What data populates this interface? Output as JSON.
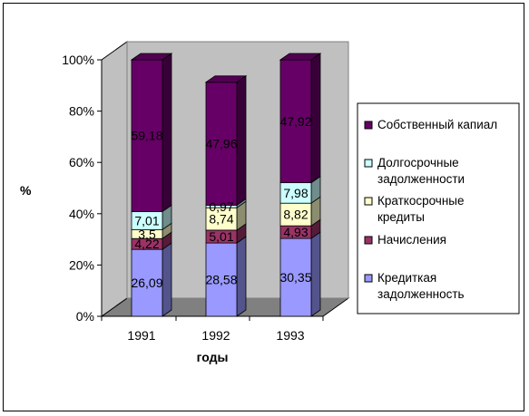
{
  "chart_data": {
    "type": "bar",
    "stacked": "percent",
    "three_d": true,
    "categories": [
      "1991",
      "1992",
      "1993"
    ],
    "xlabel": "годы",
    "ylabel": "%",
    "ylim": [
      0,
      100
    ],
    "y_ticks": [
      "0%",
      "20%",
      "40%",
      "60%",
      "80%",
      "100%"
    ],
    "grid": false,
    "legend_position": "right",
    "series": [
      {
        "name": "Кредиткая задолженность",
        "color": "#9999ff",
        "values": [
          26.09,
          28.58,
          30.35
        ],
        "labels": [
          "26,09",
          "28,58",
          "30,35"
        ]
      },
      {
        "name": "Начисления",
        "color": "#993366",
        "values": [
          4.22,
          5.01,
          4.93
        ],
        "labels": [
          "4,22",
          "5,01",
          "4,93"
        ]
      },
      {
        "name": "Краткосрочные кредиты",
        "color": "#ffffcc",
        "values": [
          3.5,
          8.74,
          8.82
        ],
        "labels": [
          "3,5",
          "8,74",
          "8,82"
        ]
      },
      {
        "name": "Долгосрочные задолженности",
        "color": "#ccffff",
        "values": [
          7.01,
          0.97,
          7.98
        ],
        "labels": [
          "7,01",
          "0,97",
          "7,98"
        ]
      },
      {
        "name": "Собственный капиал",
        "color": "#660066",
        "values": [
          59.18,
          47.96,
          47.92
        ],
        "labels": [
          "59,18",
          "47,96",
          "47,92"
        ]
      }
    ]
  }
}
